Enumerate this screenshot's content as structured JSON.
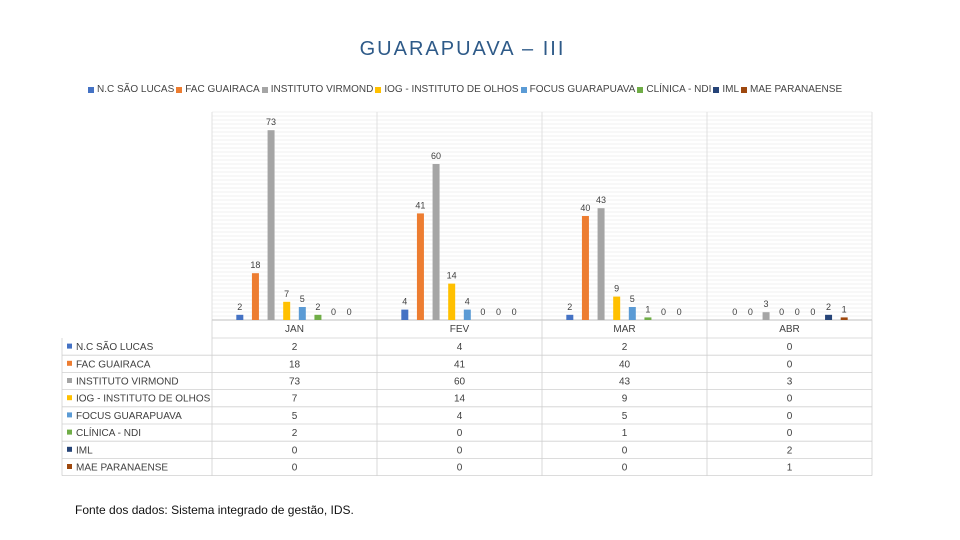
{
  "chart_data": {
    "type": "bar",
    "title": "GUARAPUAVA – III",
    "categories": [
      "JAN",
      "FEV",
      "MAR",
      "ABR"
    ],
    "series": [
      {
        "name": "N.C SÃO LUCAS",
        "color": "#4472C4",
        "values": [
          2,
          4,
          2,
          0
        ]
      },
      {
        "name": "FAC GUAIRACA",
        "color": "#ED7D31",
        "values": [
          18,
          41,
          40,
          0
        ]
      },
      {
        "name": "INSTITUTO VIRMOND",
        "color": "#A5A5A5",
        "values": [
          73,
          60,
          43,
          3
        ]
      },
      {
        "name": "IOG - INSTITUTO DE OLHOS",
        "color": "#FFC000",
        "values": [
          7,
          14,
          9,
          0
        ]
      },
      {
        "name": "FOCUS GUARAPUAVA",
        "color": "#5B9BD5",
        "values": [
          5,
          4,
          5,
          0
        ]
      },
      {
        "name": "CLÍNICA - NDI",
        "color": "#70AD47",
        "values": [
          2,
          0,
          1,
          0
        ]
      },
      {
        "name": "IML",
        "color": "#264478",
        "values": [
          0,
          0,
          0,
          2
        ]
      },
      {
        "name": "MAE PARANAENSE",
        "color": "#9E480E",
        "values": [
          0,
          0,
          0,
          1
        ]
      }
    ],
    "ylim": [
      0,
      80
    ],
    "grid": true,
    "legend_position": "top",
    "data_table": true
  },
  "source_note": "Fonte dos dados: Sistema integrado de gestão, IDS."
}
